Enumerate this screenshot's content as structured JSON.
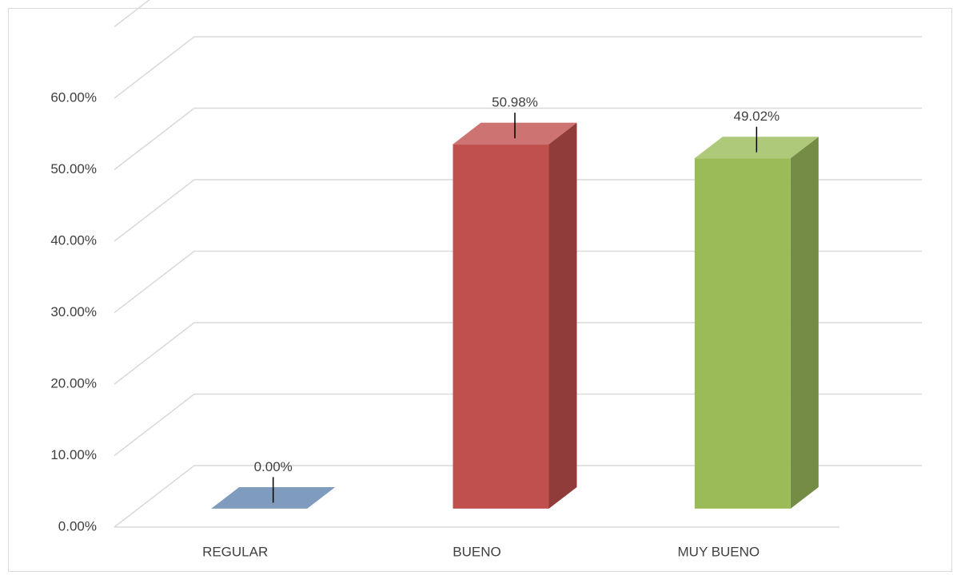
{
  "chart_data": {
    "type": "bar3d",
    "categories": [
      "REGULAR",
      "BUENO",
      "MUY BUENO"
    ],
    "values": [
      0,
      50.98,
      49.02
    ],
    "value_labels": [
      "0.00%",
      "50.98%",
      "49.02%"
    ],
    "colors": [
      "#7f9bbd",
      "#c0504d",
      "#9bbb59"
    ],
    "ylim": [
      0,
      70
    ],
    "yticks": [
      {
        "value": 0,
        "label": "0.00%"
      },
      {
        "value": 10,
        "label": "10.00%"
      },
      {
        "value": 20,
        "label": "20.00%"
      },
      {
        "value": 30,
        "label": "30.00%"
      },
      {
        "value": 40,
        "label": "40.00%"
      },
      {
        "value": 50,
        "label": "50.00%"
      },
      {
        "value": 60,
        "label": "60.00%"
      }
    ],
    "grid": true
  }
}
